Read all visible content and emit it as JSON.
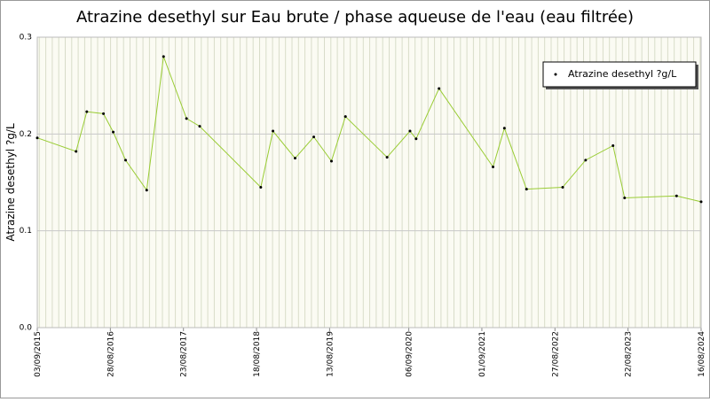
{
  "chart_data": {
    "type": "line",
    "title": "Atrazine desethyl sur Eau brute / phase aqueuse de l'eau (eau filtrée)",
    "y_label": "Atrazine desethyl ?g/L",
    "x": [
      "2015-09-03",
      "2016-03-12",
      "2016-05-04",
      "2016-07-25",
      "2016-09-11",
      "2016-11-11",
      "2017-02-23",
      "2017-05-17",
      "2017-09-07",
      "2017-11-11",
      "2018-09-08",
      "2018-11-07",
      "2019-02-24",
      "2019-05-27",
      "2019-08-22",
      "2019-10-30",
      "2020-05-22",
      "2020-09-12",
      "2020-10-12",
      "2021-02-02",
      "2021-10-26",
      "2021-12-21",
      "2022-04-09",
      "2022-10-04",
      "2023-01-25",
      "2023-06-09",
      "2023-08-05",
      "2024-04-17",
      "2024-08-16"
    ],
    "series": [
      {
        "name": "Atrazine desethyl ?g/L",
        "color": "#99cc33",
        "values": [
          0.196,
          0.182,
          0.223,
          0.221,
          0.202,
          0.173,
          0.142,
          0.28,
          0.216,
          0.208,
          0.145,
          0.203,
          0.175,
          0.197,
          0.172,
          0.218,
          0.176,
          0.203,
          0.195,
          0.247,
          0.166,
          0.206,
          0.143,
          0.145,
          0.173,
          0.188,
          0.134,
          0.136,
          0.13
        ]
      }
    ],
    "xlim": [
      "2015-09-03",
      "2024-08-16"
    ],
    "xticks": [
      {
        "value": "2015-09-03",
        "label": "03/09/2015"
      },
      {
        "value": "2016-08-28",
        "label": "28/08/2016"
      },
      {
        "value": "2017-08-23",
        "label": "23/08/2017"
      },
      {
        "value": "2018-08-18",
        "label": "18/08/2018"
      },
      {
        "value": "2019-08-13",
        "label": "13/08/2019"
      },
      {
        "value": "2020-09-06",
        "label": "06/09/2020"
      },
      {
        "value": "2021-09-01",
        "label": "01/09/2021"
      },
      {
        "value": "2022-08-27",
        "label": "27/08/2022"
      },
      {
        "value": "2023-08-22",
        "label": "22/08/2023"
      },
      {
        "value": "2024-08-16",
        "label": "16/08/2024"
      }
    ],
    "ylim": [
      0,
      0.3
    ],
    "yticks": [
      {
        "value": 0,
        "label": "0.0"
      },
      0.1,
      0.2,
      0.3
    ],
    "grid": true,
    "legend": "top-right"
  }
}
